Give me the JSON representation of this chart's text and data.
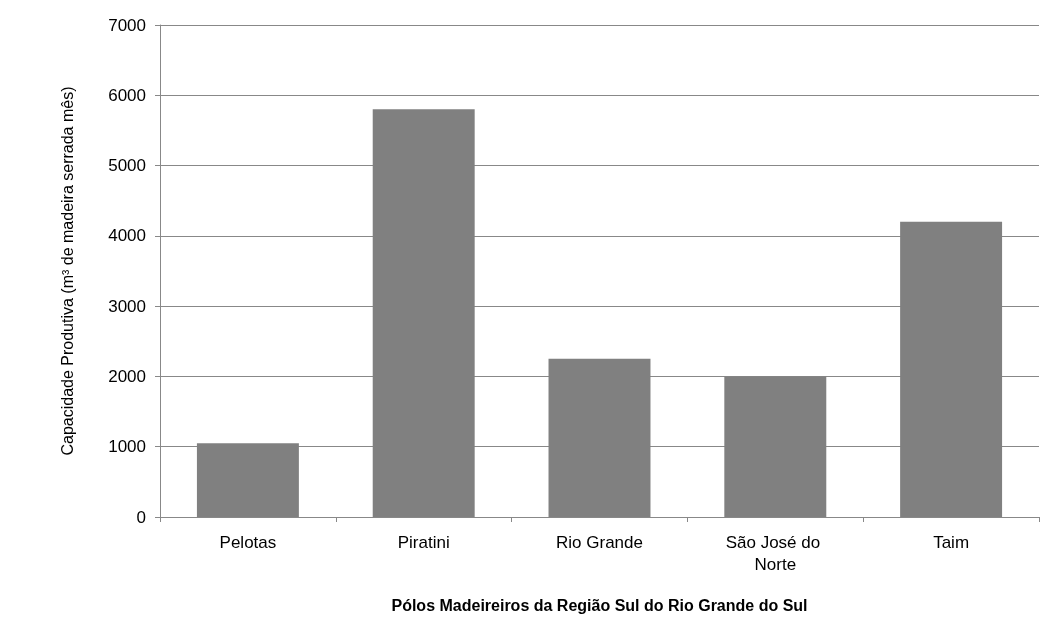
{
  "chart_data": {
    "type": "bar",
    "xlabel": "Pólos Madeireiros da Região Sul do Rio Grande do Sul",
    "ylabel": "Capacidade Produtiva (m³ de madeira serrada mês)",
    "categories": [
      "Pelotas",
      "Piratini",
      "Rio Grande",
      "São José do Norte",
      "Taim"
    ],
    "values": [
      1050,
      5800,
      2250,
      2000,
      4200
    ],
    "color": "#808080",
    "ylim": [
      0,
      7000
    ],
    "yticks": [
      0,
      1000,
      2000,
      3000,
      4000,
      5000,
      6000,
      7000
    ],
    "grid": "y"
  }
}
